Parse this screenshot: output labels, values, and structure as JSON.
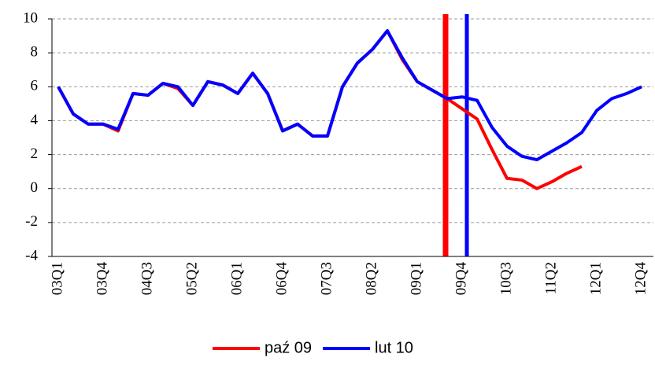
{
  "chart_data": {
    "type": "line",
    "categories": [
      "03Q1",
      null,
      null,
      "03Q4",
      null,
      null,
      "04Q3",
      null,
      null,
      "05Q2",
      null,
      null,
      "06Q1",
      null,
      null,
      "06Q4",
      null,
      null,
      "07Q3",
      null,
      null,
      "08Q2",
      null,
      null,
      "09Q1",
      null,
      null,
      "09Q4",
      null,
      null,
      "10Q3",
      null,
      null,
      "11Q2",
      null,
      null,
      "12Q1",
      null,
      null,
      "12Q4"
    ],
    "series": [
      {
        "name": "paź 09",
        "color": "#ff0000",
        "values": [
          6.0,
          4.4,
          3.8,
          3.8,
          3.4,
          5.6,
          5.5,
          6.2,
          5.9,
          4.9,
          6.3,
          6.1,
          5.6,
          6.8,
          5.6,
          3.4,
          3.8,
          3.1,
          3.1,
          6.0,
          7.4,
          8.2,
          9.3,
          7.6,
          6.3,
          5.8,
          5.3,
          4.7,
          4.1,
          2.3,
          0.6,
          0.5,
          0.0,
          0.4,
          0.9,
          1.3,
          null,
          null,
          null,
          null
        ]
      },
      {
        "name": "lut 10",
        "color": "#0000ff",
        "values": [
          6.0,
          4.4,
          3.8,
          3.8,
          3.5,
          5.6,
          5.5,
          6.2,
          6.0,
          4.9,
          6.3,
          6.1,
          5.6,
          6.8,
          5.6,
          3.4,
          3.8,
          3.1,
          3.1,
          6.0,
          7.4,
          8.2,
          9.3,
          7.7,
          6.3,
          5.8,
          5.3,
          5.4,
          5.2,
          3.6,
          2.5,
          1.9,
          1.7,
          2.2,
          2.7,
          3.3,
          4.6,
          5.3,
          5.6,
          6.0
        ]
      }
    ],
    "ylim": [
      -4,
      10
    ],
    "yticks": [
      -4,
      -2,
      0,
      2,
      4,
      6,
      8,
      10
    ],
    "grid": true,
    "legend": "bottom"
  }
}
